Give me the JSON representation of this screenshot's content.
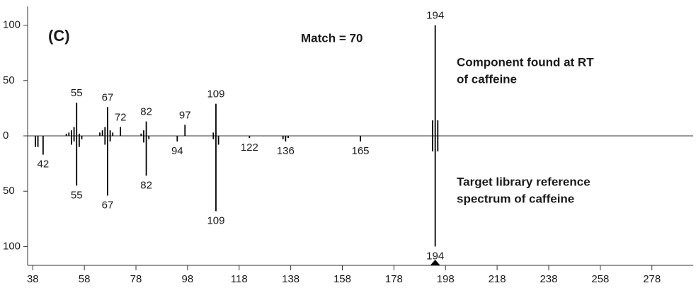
{
  "chart_data": {
    "type": "mirror-spectrum",
    "panel_label": "(C)",
    "annotation": "Match = 70",
    "upper_caption": [
      "Component found at RT",
      "of caffeine"
    ],
    "lower_caption": [
      "Target library reference",
      "spectrum of caffeine"
    ],
    "xlim": [
      36,
      294
    ],
    "xticks": [
      38,
      58,
      78,
      98,
      118,
      138,
      158,
      178,
      198,
      218,
      238,
      258,
      278
    ],
    "ylim": [
      -117,
      117
    ],
    "yticks": [
      {
        "value": -100,
        "label": "100"
      },
      {
        "value": -50,
        "label": "50"
      },
      0,
      50,
      100
    ],
    "color": "#000000",
    "marker": 194,
    "series": [
      {
        "name": "Component",
        "x": [
          51,
          52,
          53,
          54,
          55,
          56,
          64,
          65,
          66,
          67,
          68,
          69,
          72,
          80,
          81,
          82,
          97,
          108,
          109,
          193,
          194,
          195
        ],
        "values": [
          2,
          3,
          5,
          8,
          30,
          2,
          3,
          5,
          8,
          26,
          5,
          3,
          8,
          2,
          5,
          13,
          10,
          3,
          29,
          14,
          100,
          14
        ],
        "peak_labels": [
          55,
          67,
          72,
          82,
          97,
          109,
          194
        ]
      },
      {
        "name": "Reference",
        "x": [
          39,
          40,
          42,
          53,
          54,
          55,
          56,
          57,
          66,
          67,
          68,
          81,
          82,
          83,
          94,
          108,
          109,
          110,
          122,
          135,
          136,
          137,
          165,
          193,
          194,
          195
        ],
        "values": [
          -10,
          -10,
          -17,
          -8,
          -5,
          -45,
          -10,
          -3,
          -8,
          -54,
          -5,
          -6,
          -36,
          -3,
          -5,
          -3,
          -68,
          -8,
          -2,
          -3,
          -5,
          -2,
          -5,
          -14,
          -100,
          -14
        ],
        "peak_labels": [
          42,
          55,
          67,
          82,
          94,
          109,
          122,
          136,
          165,
          194
        ]
      }
    ]
  }
}
